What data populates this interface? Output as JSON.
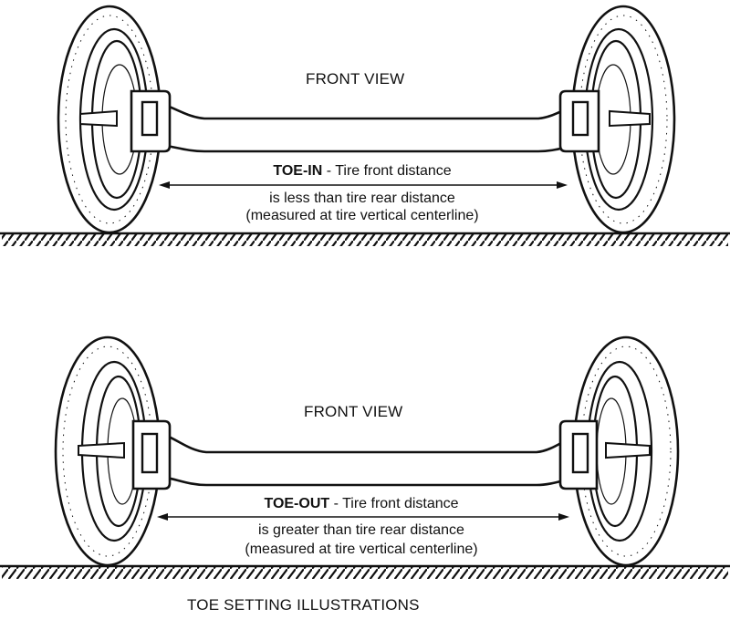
{
  "colors": {
    "ink": "#111111",
    "paper": "#ffffff"
  },
  "panels": [
    {
      "view_label": "FRONT VIEW",
      "term": "TOE-IN",
      "line1": " - Tire front distance",
      "line2": "is less than tire rear distance",
      "line3": "(measured at tire vertical centerline)"
    },
    {
      "view_label": "FRONT VIEW",
      "term": "TOE-OUT",
      "line1": " - Tire front distance",
      "line2": "is greater than tire rear distance",
      "line3": "(measured at tire vertical centerline)"
    }
  ],
  "footer": {
    "title": "TOE SETTING ILLUSTRATIONS"
  }
}
